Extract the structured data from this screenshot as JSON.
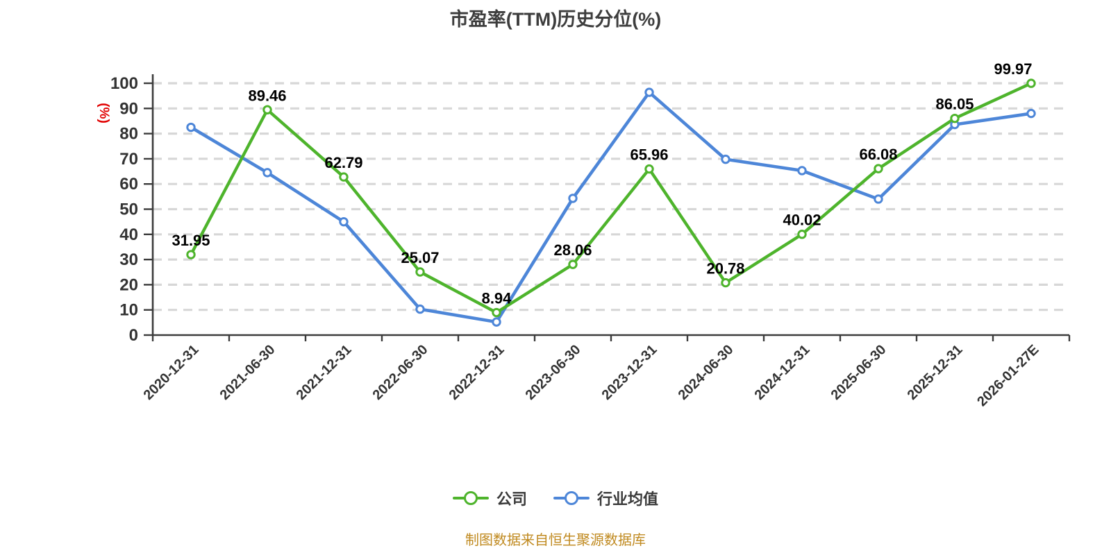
{
  "footer": {
    "note": "制图数据来自恒生聚源数据库",
    "color": "#c08a20"
  },
  "chart_data": {
    "type": "line",
    "title": "市盈率(TTM)历史分位(%)",
    "xlabel": "",
    "ylabel": "(%)",
    "ylabel_color": "#e10000",
    "ylim": [
      0,
      100
    ],
    "y_tick_step": 10,
    "y_ticks": [
      0,
      10,
      20,
      30,
      40,
      50,
      60,
      70,
      80,
      90,
      100
    ],
    "grid": "horizontal-dashed",
    "legend_position": "bottom",
    "categories": [
      "2020-12-31",
      "2021-06-30",
      "2021-12-31",
      "2022-06-30",
      "2022-12-31",
      "2023-06-30",
      "2023-12-31",
      "2024-06-30",
      "2024-12-31",
      "2025-06-30",
      "2025-12-31",
      "2026-01-27E"
    ],
    "series": [
      {
        "name": "公司",
        "color": "#4eb42c",
        "labels_visible": true,
        "values": [
          31.95,
          89.46,
          62.79,
          25.07,
          8.94,
          28.06,
          65.96,
          20.78,
          40.02,
          66.08,
          86.05,
          99.97
        ]
      },
      {
        "name": "行业均值",
        "color": "#4d86d8",
        "labels_visible": false,
        "values": [
          82.5,
          64.5,
          45.0,
          10.3,
          5.2,
          54.3,
          96.4,
          69.8,
          65.3,
          54.0,
          83.6,
          88.0
        ]
      }
    ]
  }
}
